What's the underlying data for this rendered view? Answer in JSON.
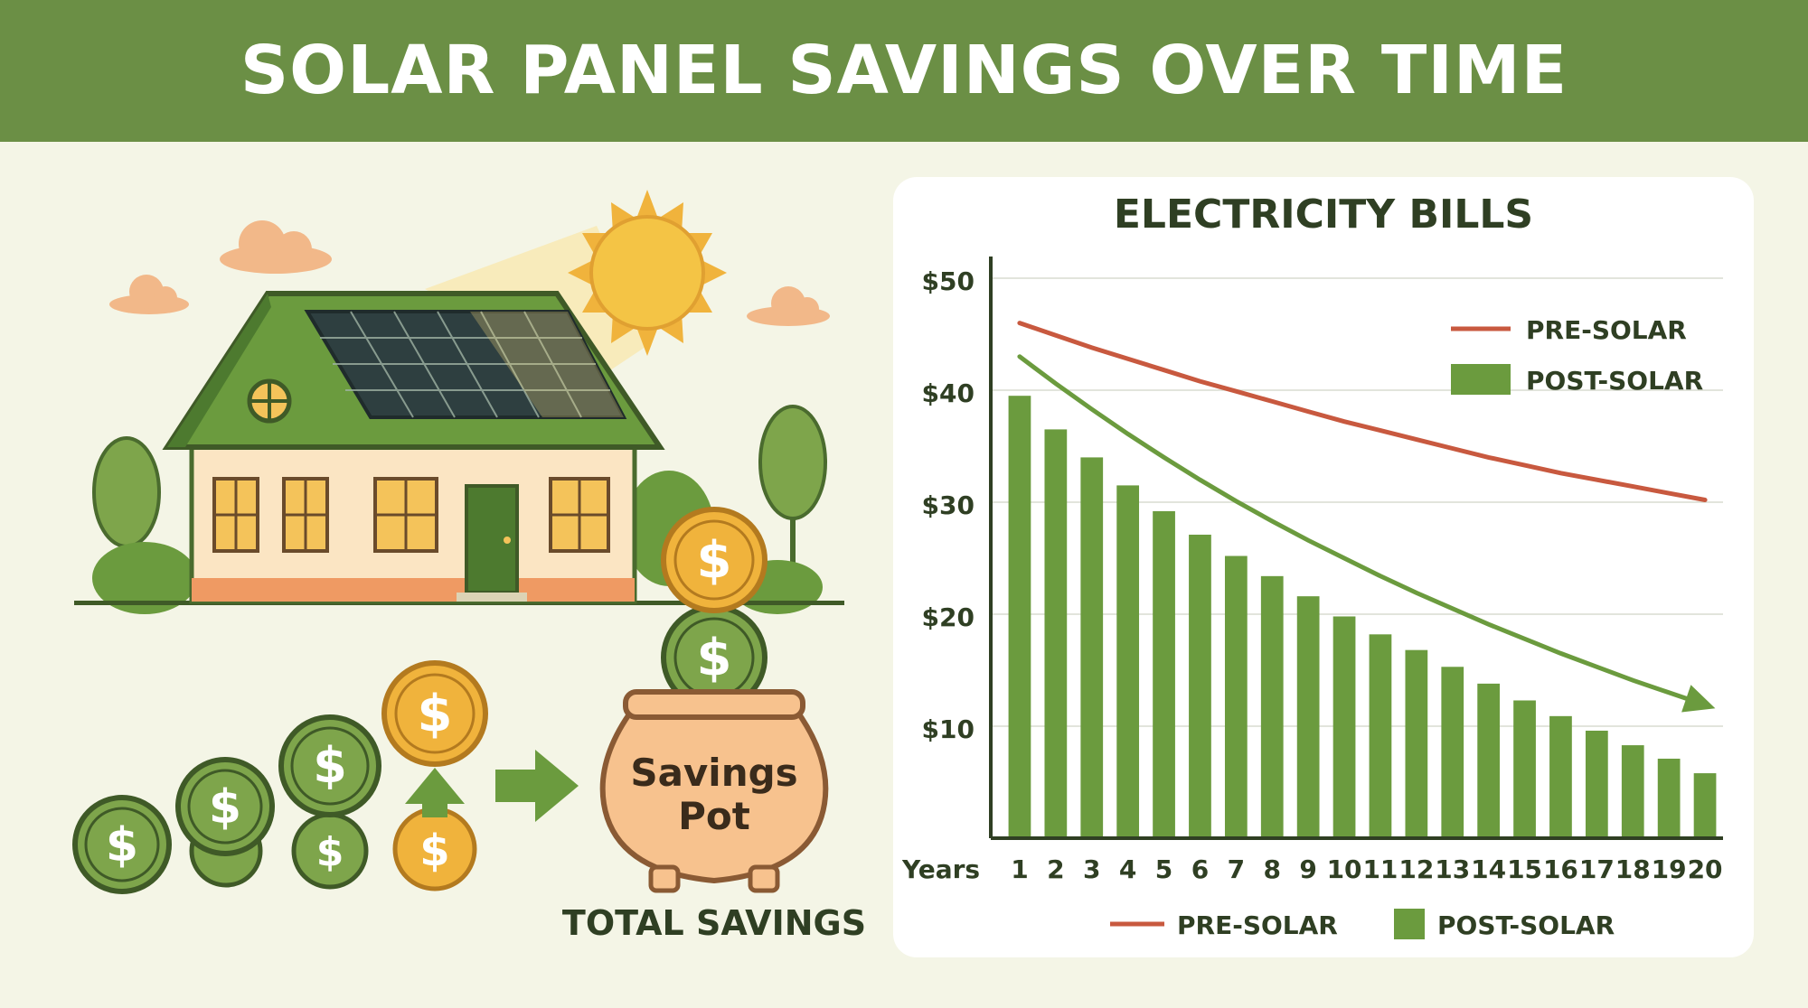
{
  "header": {
    "title": "SOLAR PANEL SAVINGS OVER TIME"
  },
  "illustration": {
    "pot_line1": "Savings",
    "pot_line2": "Pot",
    "caption": "TOTAL SAVINGS",
    "coin_symbol": "$",
    "icons": [
      "house-icon",
      "solar-panel-icon",
      "sun-icon",
      "cloud-icon",
      "tree-icon",
      "coin-icon",
      "arrow-right-icon",
      "arrow-up-icon",
      "savings-pot-icon"
    ]
  },
  "colors": {
    "banner": "#6b8f45",
    "pre_solar": "#c8593f",
    "post_solar": "#6b9b3e",
    "background": "#f4f5e6",
    "coin_gold": "#e9b143",
    "coin_green": "#6b9b3e"
  },
  "chart_data": {
    "type": "bar",
    "title": "ELECTRICITY BILLS",
    "xlabel": "Years",
    "ylabel": "",
    "x": [
      1,
      2,
      3,
      4,
      5,
      6,
      7,
      8,
      9,
      10,
      11,
      12,
      13,
      14,
      15,
      16,
      17,
      18,
      19,
      20
    ],
    "y_ticks": [
      "$50",
      "$40",
      "$30",
      "$20",
      "$10"
    ],
    "y_tick_values": [
      50,
      40,
      30,
      20,
      10
    ],
    "ylim": [
      0,
      50
    ],
    "grid": true,
    "legend": {
      "position": "top-right",
      "entries": [
        "PRE-SOLAR",
        "POST-SOLAR"
      ]
    },
    "bottom_legend": [
      "PRE-SOLAR",
      "POST-SOLAR"
    ],
    "series": [
      {
        "name": "PRE-SOLAR",
        "type": "line",
        "values": [
          46,
          44.9,
          43.8,
          42.8,
          41.8,
          40.8,
          39.9,
          39,
          38.1,
          37.2,
          36.4,
          35.6,
          34.8,
          34,
          33.3,
          32.6,
          32,
          31.4,
          30.8,
          30.2
        ]
      },
      {
        "name": "POST-SOLAR",
        "type": "line",
        "values": [
          43,
          40.6,
          38.3,
          36.1,
          34,
          32,
          30.1,
          28.3,
          26.6,
          25,
          23.4,
          21.9,
          20.5,
          19.1,
          17.8,
          16.5,
          15.3,
          14.1,
          13,
          11.9
        ]
      },
      {
        "name": "POST-SOLAR",
        "type": "bar",
        "values": [
          39.5,
          36.5,
          34,
          31.5,
          29.2,
          27.1,
          25.2,
          23.4,
          21.6,
          19.8,
          18.2,
          16.8,
          15.3,
          13.8,
          12.3,
          10.9,
          9.6,
          8.3,
          7.1,
          5.8
        ]
      }
    ]
  }
}
